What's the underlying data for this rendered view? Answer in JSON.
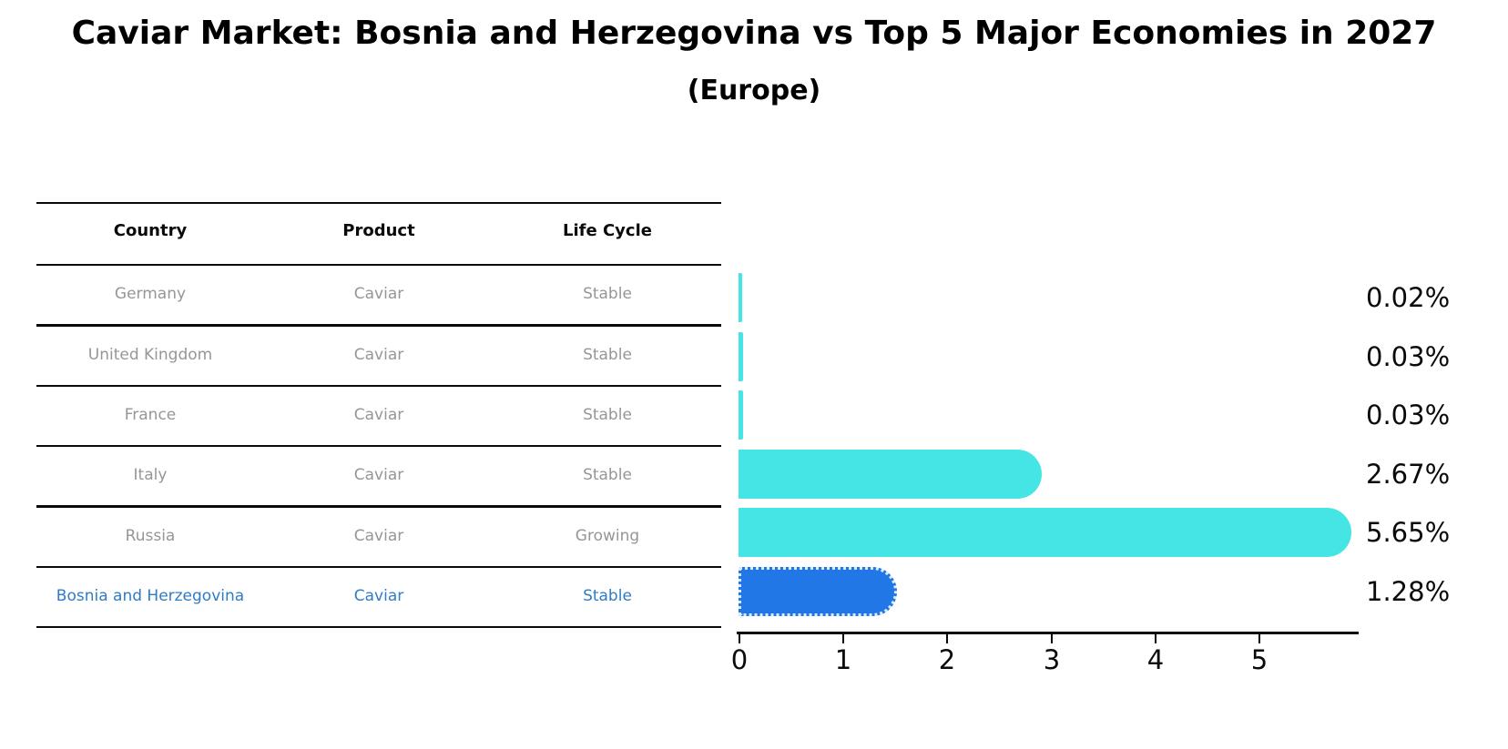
{
  "title": "Caviar Market: Bosnia and Herzegovina vs Top 5 Major Economies in 2027",
  "subtitle": "(Europe)",
  "table": {
    "headers": [
      "Country",
      "Product",
      "Life Cycle"
    ],
    "rows": [
      {
        "country": "Germany",
        "product": "Caviar",
        "life_cycle": "Stable",
        "highlight": false
      },
      {
        "country": "United Kingdom",
        "product": "Caviar",
        "life_cycle": "Stable",
        "highlight": false
      },
      {
        "country": "France",
        "product": "Caviar",
        "life_cycle": "Stable",
        "highlight": false
      },
      {
        "country": "Italy",
        "product": "Caviar",
        "life_cycle": "Stable",
        "highlight": false
      },
      {
        "country": "Russia",
        "product": "Caviar",
        "life_cycle": "Growing",
        "highlight": false
      },
      {
        "country": "Bosnia and Herzegovina",
        "product": "Caviar",
        "life_cycle": "Stable",
        "highlight": true
      }
    ]
  },
  "chart_data": {
    "type": "bar",
    "orientation": "horizontal",
    "title": "Caviar Market: Bosnia and Herzegovina vs Top 5 Major Economies in 2027",
    "subtitle": "(Europe)",
    "categories": [
      "Germany",
      "United Kingdom",
      "France",
      "Italy",
      "Russia",
      "Bosnia and Herzegovina"
    ],
    "values": [
      0.02,
      0.03,
      0.03,
      2.67,
      5.65,
      1.28
    ],
    "value_labels": [
      "0.02%",
      "0.03%",
      "0.03%",
      "2.67%",
      "5.65%",
      "1.28%"
    ],
    "xticks": [
      "0",
      "1",
      "2",
      "3",
      "4",
      "5"
    ],
    "xlim": [
      0,
      6
    ],
    "xlabel": "",
    "ylabel": "",
    "grid": false,
    "legend": false,
    "highlight_index": 5,
    "colors": {
      "bar_default": "#46e5e5",
      "bar_highlight": "#2277e6",
      "highlight_text": "#2f7cc4",
      "cell_text": "#969696",
      "axis": "#0a0a0a"
    }
  }
}
